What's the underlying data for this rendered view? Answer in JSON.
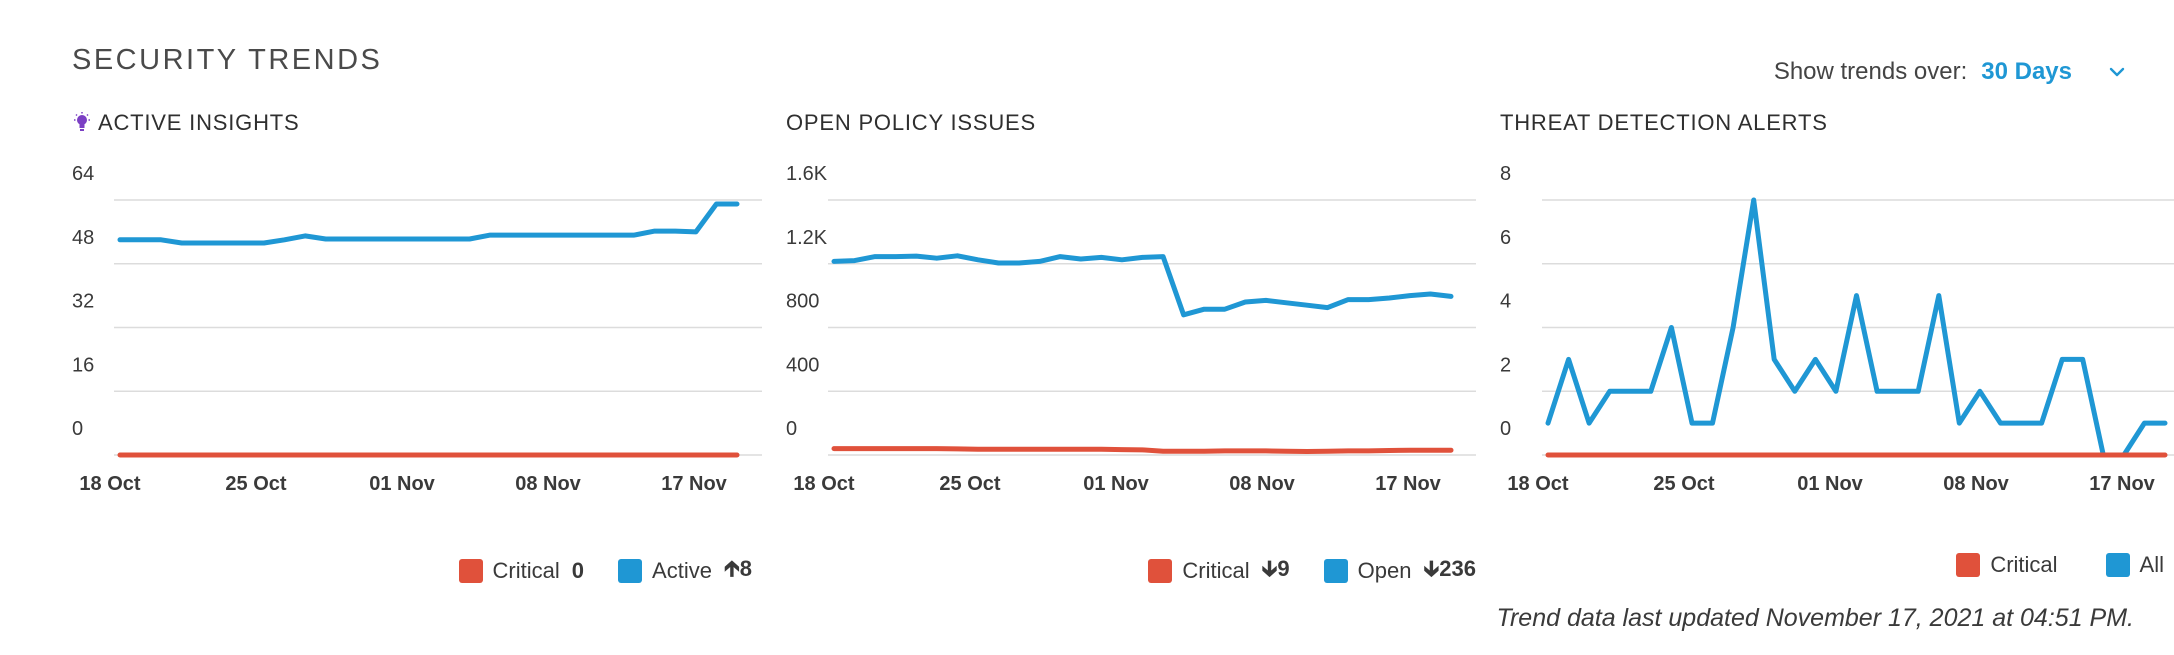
{
  "header": {
    "title": "SECURITY TRENDS",
    "trend_label": "Show trends over:",
    "trend_value": "30 Days"
  },
  "footer": {
    "updated": "Trend data last updated November 17, 2021 at 04:51 PM."
  },
  "chart_data": [
    {
      "type": "line",
      "title": "ACTIVE INSIGHTS",
      "x_labels": [
        "18 Oct",
        "25 Oct",
        "01 Nov",
        "08 Nov",
        "17 Nov"
      ],
      "y_ticks": [
        "64",
        "48",
        "32",
        "16",
        "0"
      ],
      "ylim": [
        0,
        64
      ],
      "grid": true,
      "legend_position": "bottom-right",
      "series": [
        {
          "name": "Critical",
          "delta": "0",
          "color": "#e0513b",
          "values": [
            0,
            0,
            0,
            0,
            0,
            0,
            0,
            0,
            0,
            0,
            0,
            0,
            0,
            0,
            0,
            0,
            0,
            0,
            0,
            0,
            0,
            0,
            0,
            0,
            0,
            0,
            0,
            0,
            0,
            0,
            0
          ]
        },
        {
          "name": "Active",
          "delta": "8",
          "delta_dir": "up",
          "color": "#1f97d4",
          "values": [
            54,
            54,
            54,
            53.2,
            53.2,
            53.2,
            53.2,
            53.2,
            54,
            55,
            54.2,
            54.2,
            54.2,
            54.2,
            54.2,
            54.2,
            54.2,
            54.2,
            55.2,
            55.2,
            55.2,
            55.2,
            55.2,
            55.2,
            55.2,
            55.2,
            56.2,
            56.2,
            56,
            63,
            63
          ]
        }
      ]
    },
    {
      "type": "line",
      "title": "OPEN POLICY ISSUES",
      "x_labels": [
        "18 Oct",
        "25 Oct",
        "01 Nov",
        "08 Nov",
        "17 Nov"
      ],
      "y_ticks": [
        "1.6K",
        "1.2K",
        "800",
        "400",
        "0"
      ],
      "ylim": [
        0,
        1600
      ],
      "grid": true,
      "legend_position": "bottom-right",
      "series": [
        {
          "name": "Critical",
          "delta": "9",
          "delta_dir": "down",
          "color": "#e0513b",
          "values": [
            40,
            40,
            40,
            40,
            40,
            40,
            38,
            36,
            36,
            36,
            36,
            36,
            36,
            36,
            34,
            32,
            24,
            24,
            24,
            26,
            26,
            26,
            24,
            22,
            24,
            26,
            26,
            28,
            30,
            30,
            30
          ]
        },
        {
          "name": "Open",
          "delta": "236",
          "delta_dir": "down",
          "color": "#1f97d4",
          "values": [
            1215,
            1220,
            1245,
            1245,
            1248,
            1235,
            1250,
            1225,
            1205,
            1205,
            1215,
            1245,
            1230,
            1240,
            1225,
            1240,
            1245,
            880,
            915,
            915,
            960,
            970,
            955,
            940,
            925,
            975,
            975,
            985,
            1000,
            1010,
            995
          ]
        }
      ]
    },
    {
      "type": "line",
      "title": "THREAT DETECTION ALERTS",
      "x_labels": [
        "18 Oct",
        "25 Oct",
        "01 Nov",
        "08 Nov",
        "17 Nov"
      ],
      "y_ticks": [
        "8",
        "6",
        "4",
        "2",
        "0"
      ],
      "ylim": [
        0,
        8
      ],
      "grid": true,
      "legend_position": "bottom-right",
      "series": [
        {
          "name": "Critical",
          "delta": "",
          "color": "#e0513b",
          "values": [
            0,
            0,
            0,
            0,
            0,
            0,
            0,
            0,
            0,
            0,
            0,
            0,
            0,
            0,
            0,
            0,
            0,
            0,
            0,
            0,
            0,
            0,
            0,
            0,
            0,
            0,
            0,
            0,
            0,
            0,
            0
          ]
        },
        {
          "name": "All",
          "delta": "",
          "color": "#1f97d4",
          "values": [
            1,
            3,
            1,
            2,
            2,
            2,
            4,
            1,
            1,
            4,
            8,
            3,
            2,
            3,
            2,
            5,
            2,
            2,
            2,
            5,
            1,
            2,
            1,
            1,
            1,
            3,
            3,
            0,
            0,
            1,
            1
          ]
        }
      ]
    }
  ]
}
